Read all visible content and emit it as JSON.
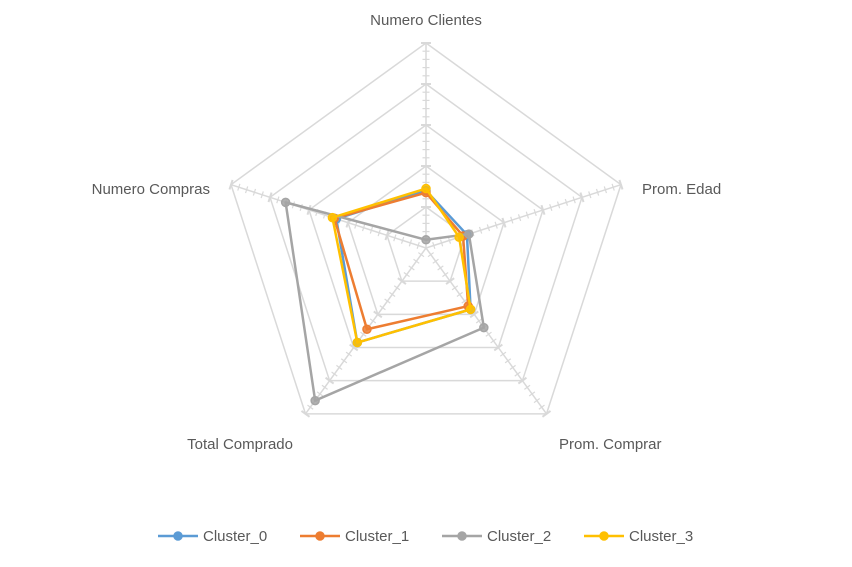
{
  "chart_data": {
    "type": "radar",
    "title": "",
    "axes": [
      "Numero Clientes",
      "Prom. Edad",
      "Prom. Comprar",
      "Total Comprado",
      "Numero Compras"
    ],
    "rmax": 5,
    "grid_rings": 5,
    "grid": true,
    "legend_position": "bottom",
    "series": [
      {
        "name": "Cluster_0",
        "color": "#5b9bd5",
        "values": [
          1.4,
          1.05,
          1.85,
          2.85,
          2.3
        ]
      },
      {
        "name": "Cluster_1",
        "color": "#ed7d31",
        "values": [
          1.35,
          0.95,
          1.75,
          2.45,
          2.35
        ]
      },
      {
        "name": "Cluster_2",
        "color": "#a5a5a5",
        "values": [
          0.2,
          1.1,
          2.4,
          4.6,
          3.6
        ]
      },
      {
        "name": "Cluster_3",
        "color": "#ffc000",
        "values": [
          1.45,
          0.85,
          1.85,
          2.85,
          2.4
        ]
      }
    ]
  }
}
